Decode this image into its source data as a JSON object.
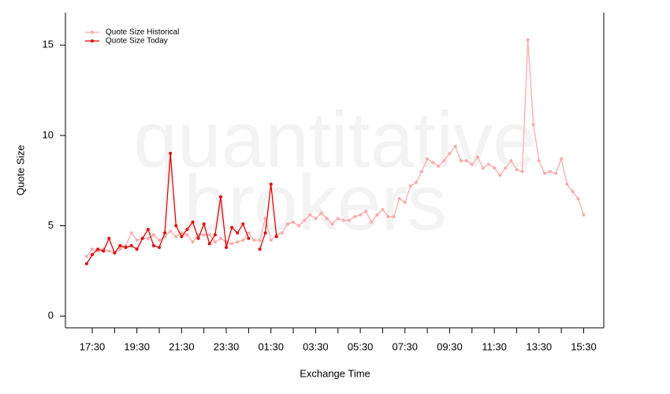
{
  "chart_data": {
    "type": "line",
    "annotations": [
      "quantitative",
      "brokers"
    ],
    "x_label": "Exchange Time",
    "y_label": "Quote Size",
    "x": [
      17.25,
      17.5,
      17.75,
      18,
      18.25,
      18.5,
      18.75,
      19,
      19.25,
      19.5,
      19.75,
      20,
      20.25,
      20.5,
      20.75,
      21,
      21.25,
      21.5,
      21.75,
      22,
      22.25,
      22.5,
      22.75,
      23,
      23.25,
      23.5,
      23.75,
      24,
      24.25,
      24.5,
      24.75,
      25,
      25.25,
      25.5,
      25.75,
      26,
      26.25,
      26.5,
      26.75,
      27,
      27.25,
      27.5,
      27.75,
      28,
      28.25,
      28.5,
      28.75,
      29,
      29.25,
      29.5,
      29.75,
      30,
      30.25,
      30.5,
      30.75,
      31,
      31.25,
      31.5,
      31.75,
      32,
      32.25,
      32.5,
      32.75,
      33,
      33.25,
      33.5,
      33.75,
      34,
      34.25,
      34.5,
      34.75,
      35,
      35.25,
      35.5,
      35.75,
      36,
      36.25,
      36.5,
      36.75,
      37,
      37.25,
      37.5,
      37.75,
      38,
      38.25,
      38.5,
      38.75,
      39,
      39.25,
      39.5
    ],
    "series": [
      {
        "name": "Quote Size Historical",
        "color": "#ffaaaa",
        "values": [
          3.3,
          3.7,
          3.6,
          3.7,
          3.6,
          3.5,
          3.7,
          3.9,
          4.6,
          4.2,
          4.3,
          4.3,
          4.5,
          4.2,
          4.4,
          4.7,
          4.4,
          4.6,
          4.5,
          4.1,
          4.5,
          4.5,
          4.5,
          4.1,
          4.3,
          4.1,
          4.0,
          4.1,
          4.2,
          4.6,
          4.2,
          4.2,
          5.4,
          4.2,
          4.5,
          4.6,
          5.1,
          5.2,
          5.0,
          5.3,
          5.6,
          5.4,
          5.7,
          5.4,
          5.1,
          5.4,
          5.3,
          5.3,
          5.5,
          5.6,
          5.8,
          5.2,
          5.6,
          5.9,
          5.5,
          5.5,
          6.5,
          6.3,
          7.2,
          7.4,
          8.0,
          8.7,
          8.5,
          8.3,
          8.6,
          9.0,
          9.4,
          8.6,
          8.6,
          8.4,
          8.8,
          8.2,
          8.4,
          8.2,
          7.8,
          8.2,
          8.6,
          8.1,
          8.0,
          15.3,
          10.6,
          8.6,
          7.9,
          8.0,
          7.9,
          8.7,
          7.3,
          6.9,
          6.5,
          5.6
        ]
      },
      {
        "name": "Quote Size Today",
        "color": "#ee0000",
        "values": [
          2.9,
          3.4,
          3.7,
          3.6,
          4.3,
          3.5,
          3.9,
          3.8,
          3.9,
          3.7,
          4.3,
          4.8,
          3.9,
          3.8,
          4.6,
          9.0,
          5.0,
          4.4,
          4.8,
          5.2,
          4.3,
          5.1,
          4.0,
          4.5,
          6.6,
          3.8,
          4.9,
          4.6,
          5.1,
          4.3,
          null,
          3.7,
          4.6,
          7.3,
          4.4,
          null,
          null,
          null,
          null,
          null,
          null,
          null,
          null,
          null,
          null,
          null,
          null,
          null,
          null,
          null,
          null,
          null,
          null,
          null,
          null,
          null,
          null,
          null,
          null,
          null,
          null,
          null,
          null,
          null,
          null,
          null,
          null,
          null,
          null,
          null,
          null,
          null,
          null,
          null,
          null,
          null,
          null,
          null,
          null,
          null,
          null,
          null,
          null,
          null,
          null,
          null,
          null,
          null,
          null,
          null
        ]
      }
    ],
    "xlim": [
      16.3,
      40.4
    ],
    "ylim": [
      -0.65,
      16.8
    ],
    "xticks": [
      {
        "value": 17.5,
        "label": "17:30"
      },
      {
        "value": 19.5,
        "label": "19:30"
      },
      {
        "value": 21.5,
        "label": "21:30"
      },
      {
        "value": 23.5,
        "label": "23:30"
      },
      {
        "value": 25.5,
        "label": "01:30"
      },
      {
        "value": 27.5,
        "label": "03:30"
      },
      {
        "value": 29.5,
        "label": "05:30"
      },
      {
        "value": 31.5,
        "label": "07:30"
      },
      {
        "value": 33.5,
        "label": "09:30"
      },
      {
        "value": 35.5,
        "label": "11:30"
      },
      {
        "value": 37.5,
        "label": "13:30"
      },
      {
        "value": 39.5,
        "label": "15:30"
      }
    ],
    "xminorticks": [
      18.5,
      20.5,
      22.5,
      24.5,
      26.5,
      28.5,
      30.5,
      32.5,
      34.5,
      36.5,
      38.5
    ],
    "yticks": [
      0,
      5,
      10,
      15
    ],
    "legend": "top-left"
  }
}
